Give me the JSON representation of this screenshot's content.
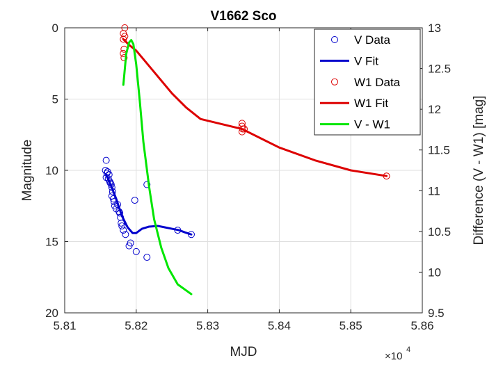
{
  "chart_data": {
    "type": "scatter",
    "title": "V1662 Sco",
    "xlabel": "MJD",
    "ylabel_left": "Magnitude",
    "ylabel_right": "Difference (V - W1) [mag]",
    "x_multiplier": {
      "base": "×10",
      "exponent": "4"
    },
    "xlim": [
      5.81,
      5.86
    ],
    "xticks": [
      5.81,
      5.82,
      5.83,
      5.84,
      5.85,
      5.86
    ],
    "xtick_labels": [
      "5.81",
      "5.82",
      "5.83",
      "5.84",
      "5.85",
      "5.86"
    ],
    "ylim_left": [
      0,
      20
    ],
    "y_left_reversed": true,
    "yticks_left": [
      0,
      5,
      10,
      15,
      20
    ],
    "ytick_labels_left": [
      "0",
      "5",
      "10",
      "15",
      "20"
    ],
    "ylim_right": [
      9.5,
      13
    ],
    "yticks_right": [
      9.5,
      10,
      10.5,
      11,
      11.5,
      12,
      12.5,
      13
    ],
    "ytick_labels_right": [
      "9.5",
      "10",
      "10.5",
      "11",
      "11.5",
      "12",
      "12.5",
      "13"
    ],
    "grid": true,
    "legend_position": "top-right",
    "colors": {
      "v": "#0000cc",
      "w1": "#dd0000",
      "diff": "#00e600"
    },
    "series": [
      {
        "name": "V Data",
        "kind": "markers",
        "axis": "left",
        "color": "#0000cc",
        "points": [
          [
            5.8158,
            9.3
          ],
          [
            5.8157,
            10.0
          ],
          [
            5.8159,
            10.2
          ],
          [
            5.8158,
            10.5
          ],
          [
            5.816,
            10.1
          ],
          [
            5.8162,
            10.3
          ],
          [
            5.8161,
            10.6
          ],
          [
            5.8163,
            10.8
          ],
          [
            5.8164,
            10.9
          ],
          [
            5.8165,
            11.0
          ],
          [
            5.8166,
            11.2
          ],
          [
            5.8167,
            11.5
          ],
          [
            5.8166,
            11.8
          ],
          [
            5.8168,
            12.0
          ],
          [
            5.8169,
            12.2
          ],
          [
            5.817,
            12.5
          ],
          [
            5.8172,
            12.7
          ],
          [
            5.8174,
            12.4
          ],
          [
            5.8176,
            12.9
          ],
          [
            5.8177,
            13.0
          ],
          [
            5.8178,
            13.3
          ],
          [
            5.8179,
            13.7
          ],
          [
            5.818,
            13.9
          ],
          [
            5.8182,
            14.2
          ],
          [
            5.8185,
            14.5
          ],
          [
            5.819,
            15.3
          ],
          [
            5.8192,
            15.1
          ],
          [
            5.8198,
            12.1
          ],
          [
            5.82,
            15.7
          ],
          [
            5.8215,
            16.1
          ],
          [
            5.8215,
            11.0
          ],
          [
            5.8258,
            14.2
          ],
          [
            5.8277,
            14.5
          ]
        ]
      },
      {
        "name": "V Fit",
        "kind": "line",
        "axis": "left",
        "color": "#0000cc",
        "points": [
          [
            5.8158,
            10.3
          ],
          [
            5.8165,
            11.1
          ],
          [
            5.8172,
            12.0
          ],
          [
            5.818,
            13.2
          ],
          [
            5.8188,
            14.0
          ],
          [
            5.8195,
            14.4
          ],
          [
            5.82,
            14.4
          ],
          [
            5.8208,
            14.1
          ],
          [
            5.8218,
            13.95
          ],
          [
            5.823,
            13.9
          ],
          [
            5.824,
            14.0
          ],
          [
            5.825,
            14.1
          ],
          [
            5.826,
            14.2
          ],
          [
            5.8268,
            14.35
          ],
          [
            5.8277,
            14.5
          ]
        ]
      },
      {
        "name": "W1 Data",
        "kind": "markers",
        "axis": "left",
        "color": "#dd0000",
        "points": [
          [
            5.8184,
            0.0
          ],
          [
            5.8182,
            0.4
          ],
          [
            5.8184,
            0.6
          ],
          [
            5.8182,
            0.8
          ],
          [
            5.8183,
            1.5
          ],
          [
            5.8182,
            1.8
          ],
          [
            5.8183,
            2.1
          ],
          [
            5.8348,
            6.7
          ],
          [
            5.8348,
            6.9
          ],
          [
            5.8349,
            7.1
          ],
          [
            5.8348,
            7.3
          ],
          [
            5.8351,
            7.1
          ],
          [
            5.855,
            10.4
          ]
        ]
      },
      {
        "name": "W1 Fit",
        "kind": "line",
        "axis": "left",
        "color": "#dd0000",
        "points": [
          [
            5.8182,
            0.8
          ],
          [
            5.819,
            1.2
          ],
          [
            5.82,
            1.6
          ],
          [
            5.821,
            2.2
          ],
          [
            5.823,
            3.4
          ],
          [
            5.825,
            4.6
          ],
          [
            5.827,
            5.6
          ],
          [
            5.829,
            6.4
          ],
          [
            5.8348,
            7.1
          ],
          [
            5.84,
            8.4
          ],
          [
            5.845,
            9.3
          ],
          [
            5.85,
            10.0
          ],
          [
            5.855,
            10.4
          ]
        ]
      },
      {
        "name": "V - W1",
        "kind": "line",
        "axis": "right",
        "color": "#00e600",
        "points": [
          [
            5.8182,
            12.3
          ],
          [
            5.8186,
            12.68
          ],
          [
            5.819,
            12.82
          ],
          [
            5.8193,
            12.85
          ],
          [
            5.8196,
            12.8
          ],
          [
            5.82,
            12.55
          ],
          [
            5.8205,
            12.1
          ],
          [
            5.821,
            11.6
          ],
          [
            5.8218,
            11.05
          ],
          [
            5.8225,
            10.65
          ],
          [
            5.8235,
            10.3
          ],
          [
            5.8245,
            10.05
          ],
          [
            5.8258,
            9.85
          ],
          [
            5.8277,
            9.73
          ]
        ]
      }
    ]
  }
}
